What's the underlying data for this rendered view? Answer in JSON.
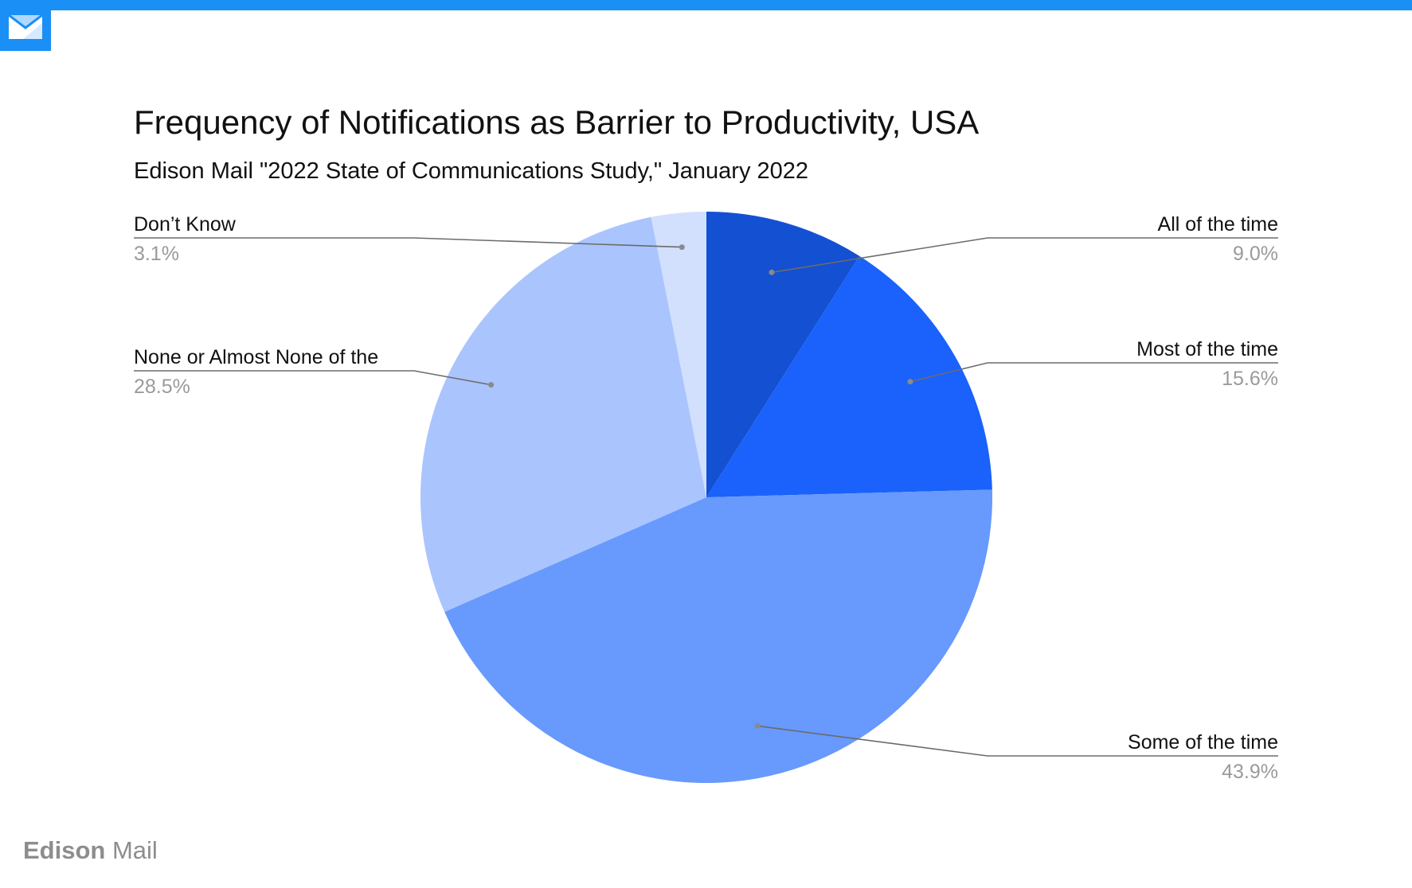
{
  "header": {
    "logo_icon": "envelope-icon",
    "accent_color": "#1a8ff5"
  },
  "chart_data": {
    "type": "pie",
    "title": "Frequency of Notifications as Barrier to Productivity, USA",
    "subtitle": "Edison Mail \"2022 State of Communications Study,\" January 2022",
    "slices": [
      {
        "label": "All of the time",
        "value": 9.0,
        "value_label": "9.0%",
        "color": "#1450d2"
      },
      {
        "label": "Most of the time",
        "value": 15.6,
        "value_label": "15.6%",
        "color": "#1a62fb"
      },
      {
        "label": "Some of the time",
        "value": 43.9,
        "value_label": "43.9%",
        "color": "#6899fd"
      },
      {
        "label": "None or Almost None of the",
        "value": 28.5,
        "value_label": "28.5%",
        "color": "#aac4fd"
      },
      {
        "label": "Don’t Know",
        "value": 3.1,
        "value_label": "3.1%",
        "color": "#d2e0fe"
      }
    ],
    "start_angle": "12 o'clock",
    "direction": "clockwise",
    "legend": "none"
  },
  "footer": {
    "brand_strong": "Edison",
    "brand_light": "Mail"
  }
}
